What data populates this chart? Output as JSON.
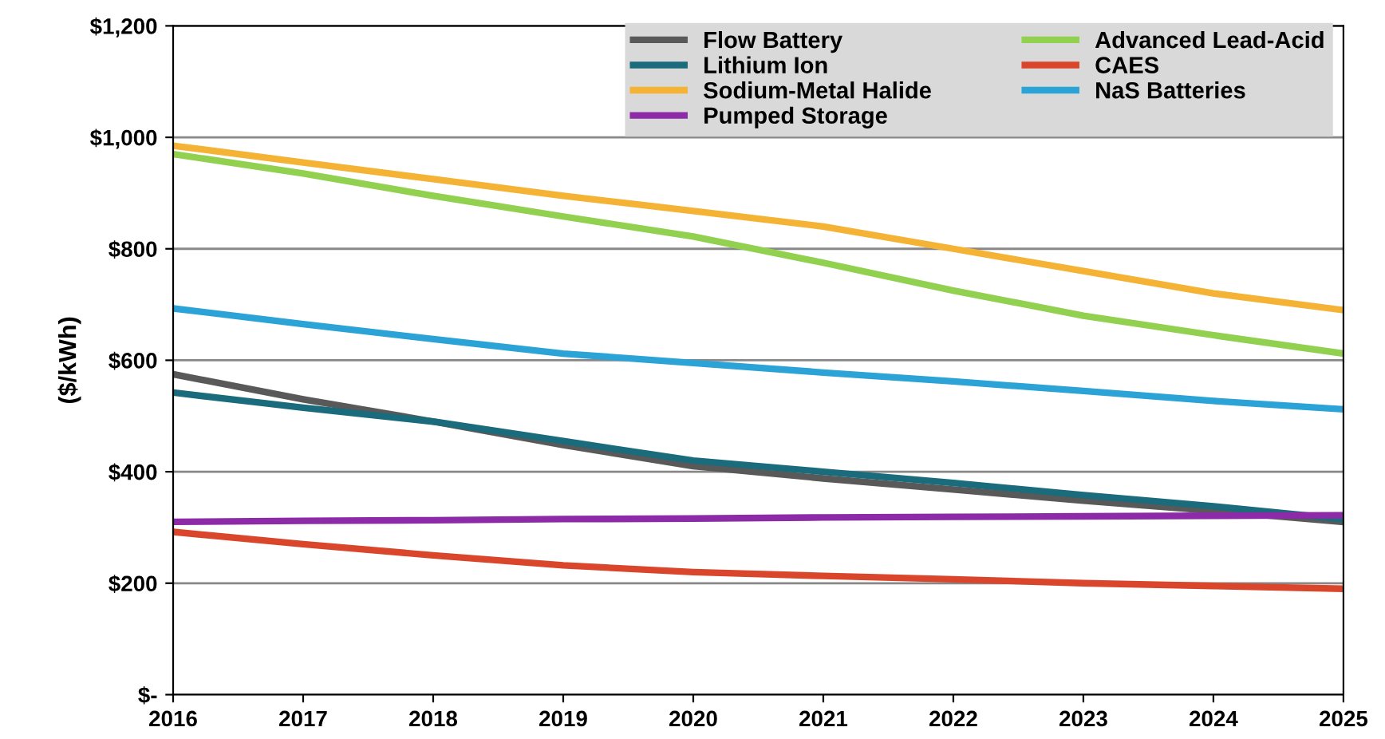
{
  "chart_data": {
    "type": "line",
    "ylabel": "($/kWh)",
    "x": [
      2016,
      2017,
      2018,
      2019,
      2020,
      2021,
      2022,
      2023,
      2024,
      2025
    ],
    "xlim": [
      2016,
      2025
    ],
    "xticks": [
      2016,
      2017,
      2018,
      2019,
      2020,
      2021,
      2022,
      2023,
      2024,
      2025
    ],
    "ylim": [
      0,
      1200
    ],
    "yticks": [
      {
        "value": 0,
        "label": "$-"
      },
      {
        "value": 200,
        "label": "$200"
      },
      {
        "value": 400,
        "label": "$400"
      },
      {
        "value": 600,
        "label": "$600"
      },
      {
        "value": 800,
        "label": "$800"
      },
      {
        "value": 1000,
        "label": "$1,000"
      },
      {
        "value": 1200,
        "label": "$1,200"
      }
    ],
    "grid": "y",
    "legend": "top right",
    "marker": "none",
    "line_style": "solid",
    "series": [
      {
        "name": "Flow Battery",
        "color": "#595959",
        "values": [
          575,
          530,
          490,
          448,
          410,
          388,
          368,
          348,
          330,
          310
        ]
      },
      {
        "name": "Lithium Ion",
        "color": "#1a6b7c",
        "values": [
          542,
          515,
          490,
          455,
          420,
          400,
          380,
          358,
          338,
          315
        ]
      },
      {
        "name": "Sodium-Metal Halide",
        "color": "#f5b335",
        "values": [
          985,
          955,
          925,
          895,
          868,
          840,
          800,
          760,
          720,
          690
        ]
      },
      {
        "name": "Pumped Storage",
        "color": "#8d2aa7",
        "values": [
          310,
          312,
          313,
          315,
          316,
          318,
          319,
          320,
          321,
          322
        ]
      },
      {
        "name": "Advanced Lead-Acid",
        "color": "#92d050",
        "values": [
          970,
          935,
          895,
          858,
          822,
          775,
          725,
          680,
          645,
          612
        ]
      },
      {
        "name": "CAES",
        "color": "#d9462b",
        "values": [
          292,
          270,
          250,
          232,
          220,
          213,
          207,
          200,
          195,
          190
        ]
      },
      {
        "name": "NaS Batteries",
        "color": "#2ba3d6",
        "values": [
          693,
          665,
          638,
          612,
          595,
          578,
          562,
          545,
          527,
          512
        ]
      }
    ]
  }
}
